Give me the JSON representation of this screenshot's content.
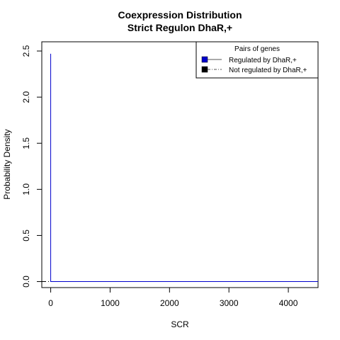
{
  "chart_data": {
    "type": "line",
    "title": [
      "Coexpression Distribution",
      "Strict Regulon DhaR,+"
    ],
    "xlabel": "SCR",
    "ylabel": "Probability Density",
    "xlim": [
      -150,
      4500
    ],
    "ylim": [
      -0.065,
      2.6
    ],
    "xticks": [
      0,
      1000,
      2000,
      3000,
      4000
    ],
    "xtick_labels": [
      "0",
      "1000",
      "2000",
      "3000",
      "4000"
    ],
    "yticks": [
      0.0,
      0.5,
      1.0,
      1.5,
      2.0,
      2.5
    ],
    "ytick_labels": [
      "0.0",
      "0.5",
      "1.0",
      "1.5",
      "2.0",
      "2.5"
    ],
    "grid": false,
    "legend": {
      "title": "Pairs of genes",
      "placement": "top-right",
      "entries": [
        {
          "label": "Regulated by  DhaR,+",
          "swatch_color": "#0000cc",
          "line_style": "solid"
        },
        {
          "label": "Not regulated by  DhaR,+",
          "swatch_color": "#000000",
          "line_style": "dashdot"
        }
      ]
    },
    "series": [
      {
        "name": "Regulated by  DhaR,+",
        "color": "#0000cc",
        "line_style": "solid",
        "x": [
          0,
          0,
          0,
          4500
        ],
        "y": [
          0,
          2.47,
          0,
          0
        ]
      },
      {
        "name": "Not regulated by  DhaR,+",
        "color": "#000000",
        "line_style": "dashdot",
        "x": [
          -150,
          4500
        ],
        "y": [
          0,
          0
        ]
      }
    ]
  }
}
